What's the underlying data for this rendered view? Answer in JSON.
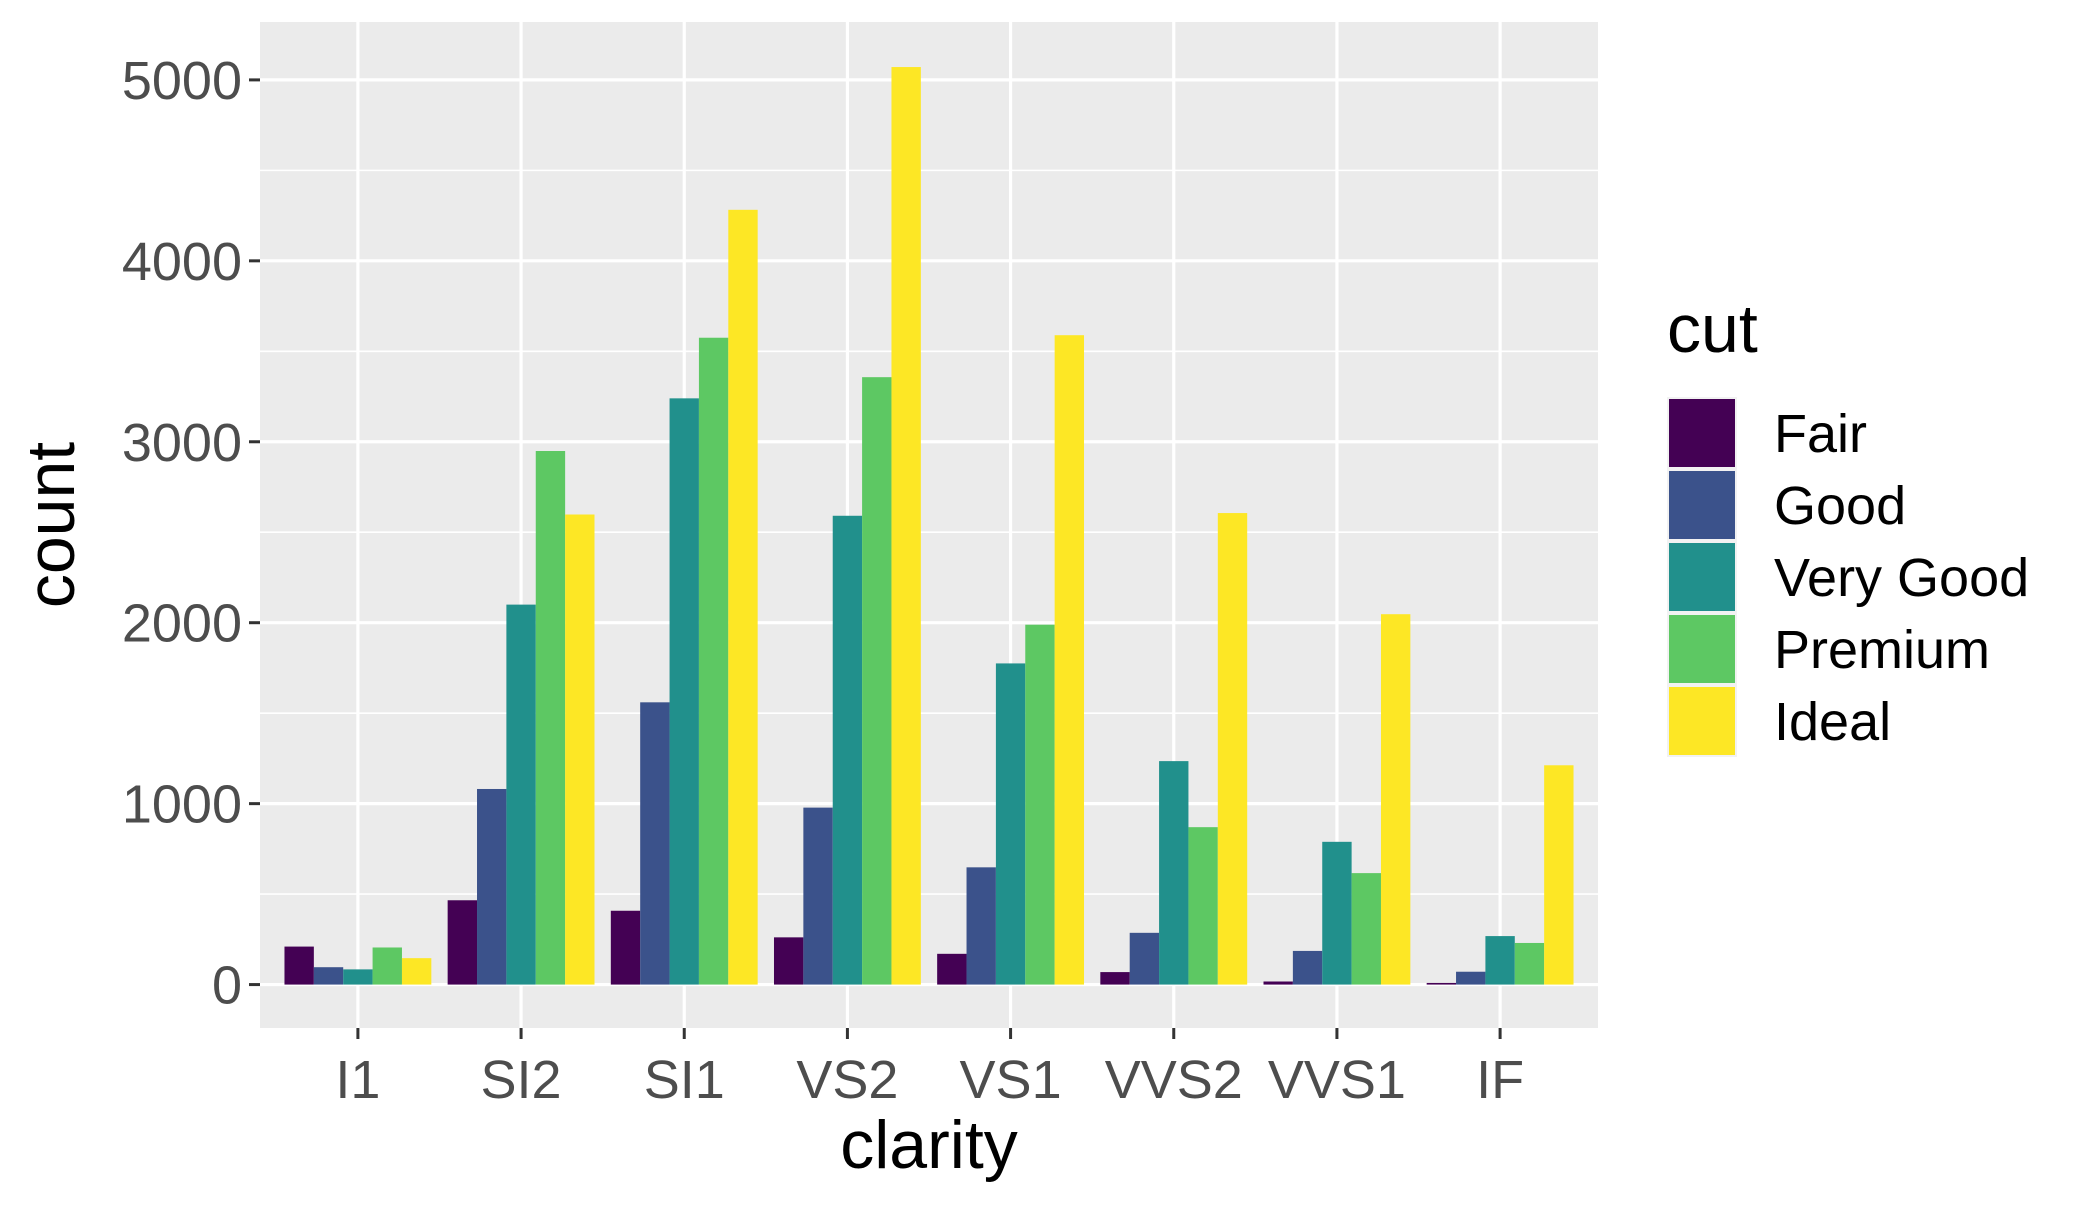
{
  "chart_data": {
    "type": "bar",
    "categories": [
      "I1",
      "SI2",
      "SI1",
      "VS2",
      "VS1",
      "VVS2",
      "VVS1",
      "IF"
    ],
    "series": [
      {
        "name": "Fair",
        "color": "#440154",
        "values": [
          210,
          466,
          408,
          261,
          170,
          69,
          17,
          9
        ]
      },
      {
        "name": "Good",
        "color": "#3B528B",
        "values": [
          96,
          1081,
          1560,
          978,
          648,
          286,
          186,
          71
        ]
      },
      {
        "name": "Very Good",
        "color": "#21908C",
        "values": [
          84,
          2100,
          3240,
          2591,
          1775,
          1235,
          789,
          268
        ]
      },
      {
        "name": "Premium",
        "color": "#5DC863",
        "values": [
          205,
          2949,
          3575,
          3357,
          1989,
          870,
          616,
          230
        ]
      },
      {
        "name": "Ideal",
        "color": "#FDE725",
        "values": [
          146,
          2598,
          4282,
          5071,
          3589,
          2606,
          2047,
          1212
        ]
      }
    ],
    "xlabel": "clarity",
    "ylabel": "count",
    "legend_title": "cut",
    "legend_position": "right",
    "yticks": [
      0,
      1000,
      2000,
      3000,
      4000,
      5000
    ],
    "ylim": [
      -240,
      5320
    ],
    "grid": true,
    "panel_background": "#EBEBEB",
    "grid_color": "#FFFFFF"
  }
}
